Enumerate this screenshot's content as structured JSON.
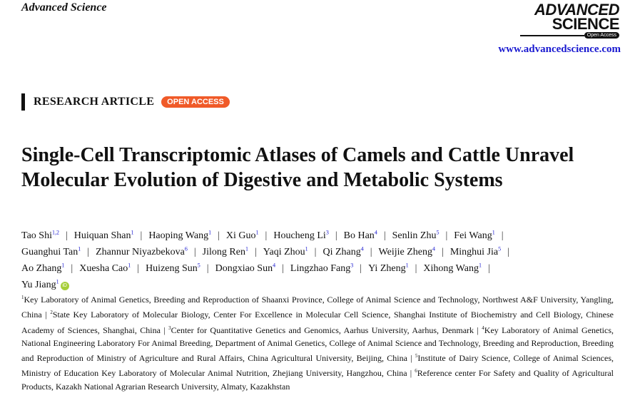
{
  "journal_name": "Advanced Science",
  "logo": {
    "line1": "ADVANCED",
    "line2": "SCIENCE",
    "badge": "Open Access"
  },
  "url": "www.advancedscience.com",
  "article_type": "RESEARCH ARTICLE",
  "access_badge": "OPEN ACCESS",
  "title": "Single-Cell Transcriptomic Atlases of Camels and Cattle Unravel Molecular Evolution of Digestive and Metabolic Systems",
  "authors": [
    {
      "name": "Tao Shi",
      "aff": "1,2"
    },
    {
      "name": "Huiquan Shan",
      "aff": "1"
    },
    {
      "name": "Haoping Wang",
      "aff": "1"
    },
    {
      "name": "Xi Guo",
      "aff": "1"
    },
    {
      "name": "Houcheng Li",
      "aff": "3"
    },
    {
      "name": "Bo Han",
      "aff": "4"
    },
    {
      "name": "Senlin Zhu",
      "aff": "5"
    },
    {
      "name": "Fei Wang",
      "aff": "1"
    },
    {
      "name": "Guanghui Tan",
      "aff": "1"
    },
    {
      "name": "Zhannur Niyazbekova",
      "aff": "6"
    },
    {
      "name": "Jilong Ren",
      "aff": "1"
    },
    {
      "name": "Yaqi Zhou",
      "aff": "1"
    },
    {
      "name": "Qi Zhang",
      "aff": "4"
    },
    {
      "name": "Weijie Zheng",
      "aff": "4"
    },
    {
      "name": "Minghui Jia",
      "aff": "5"
    },
    {
      "name": "Ao Zhang",
      "aff": "1"
    },
    {
      "name": "Xuesha Cao",
      "aff": "1"
    },
    {
      "name": "Huizeng Sun",
      "aff": "5"
    },
    {
      "name": "Dongxiao Sun",
      "aff": "4"
    },
    {
      "name": "Lingzhao Fang",
      "aff": "3"
    },
    {
      "name": "Yi Zheng",
      "aff": "1"
    },
    {
      "name": "Xihong Wang",
      "aff": "1"
    },
    {
      "name": "Yu Jiang",
      "aff": "1"
    }
  ],
  "orcid_label": "iD",
  "affiliations": [
    {
      "num": "1",
      "text": "Key Laboratory of Animal Genetics, Breeding and Reproduction of Shaanxi Province, College of Animal Science and Technology, Northwest A&F University, Yangling, China"
    },
    {
      "num": "2",
      "text": "State Key Laboratory of Molecular Biology, Center For Excellence in Molecular Cell Science, Shanghai Institute of Biochemistry and Cell Biology, Chinese Academy of Sciences, Shanghai, China"
    },
    {
      "num": "3",
      "text": "Center for Quantitative Genetics and Genomics, Aarhus University, Aarhus, Denmark"
    },
    {
      "num": "4",
      "text": "Key Laboratory of Animal Genetics, National Engineering Laboratory For Animal Breeding, Department of Animal Genetics, College of Animal Science and Technology, Breeding and Reproduction, Breeding and Reproduction of Ministry of Agriculture and Rural Affairs, China Agricultural University, Beijing, China"
    },
    {
      "num": "5",
      "text": "Institute of Dairy Science, College of Animal Sciences, Ministry of Education Key Laboratory of Molecular Animal Nutrition, Zhejiang University, Hangzhou, China"
    },
    {
      "num": "6",
      "text": "Reference center For Safety and Quality of Agricultural Products, Kazakh National Agrarian Research University, Almaty, Kazakhstan"
    }
  ],
  "colors": {
    "link": "#1a1ad0",
    "badge": "#f05a28",
    "orcid": "#a6ce39"
  }
}
